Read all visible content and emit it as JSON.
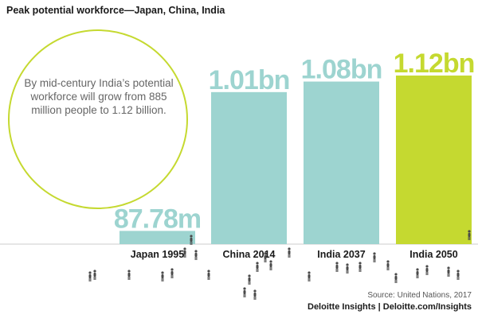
{
  "title": "Peak potential workforce—Japan, China, India",
  "callout": "By mid-century India’s potential workforce will grow from 885 million people to 1.12 billion.",
  "colors": {
    "bar_default": "#9dd4d0",
    "bar_highlight": "#c5d930",
    "circle": "#c5d930",
    "baseline": "#cccccc",
    "figures": "#4a4a4a"
  },
  "chart_data": {
    "type": "bar",
    "categories": [
      "Japan 1995",
      "China 2014",
      "India 2037",
      "India 2050"
    ],
    "values": [
      87.78,
      1010,
      1080,
      1120
    ],
    "value_unit": "million",
    "data_labels": [
      "87.78m",
      "1.01bn",
      "1.08bn",
      "1.12bn"
    ],
    "highlight_index": 3,
    "ylim": [
      0,
      1120
    ]
  },
  "source": "Source: United Nations, 2017",
  "brand": "Deloitte Insights | Deloitte.com/Insights"
}
